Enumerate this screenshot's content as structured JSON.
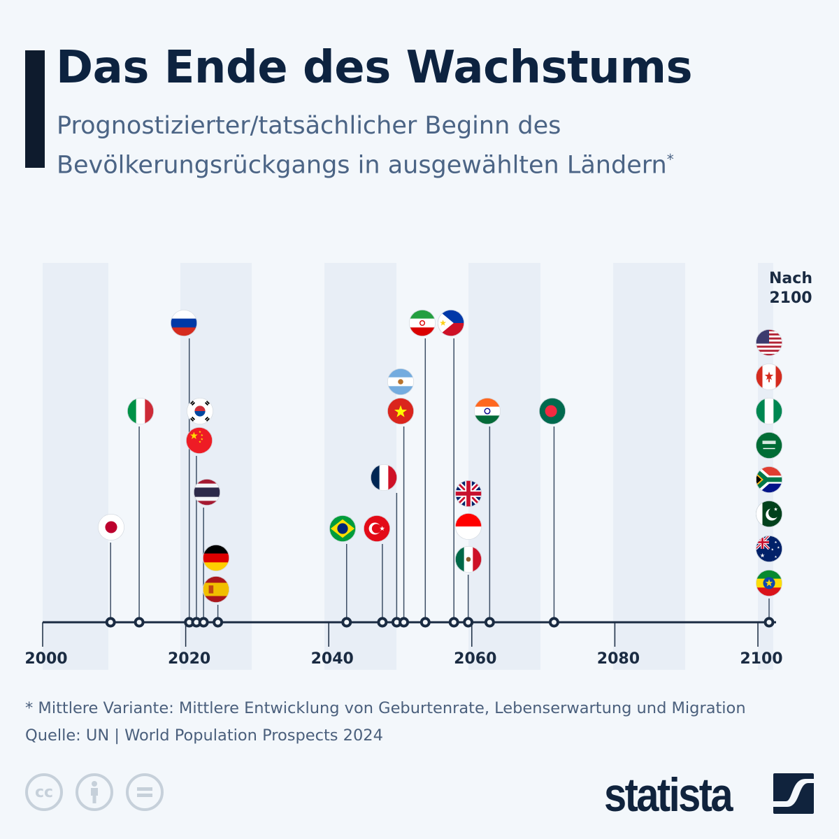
{
  "header": {
    "title": "Das Ende des Wachstums",
    "subtitle_line1": "Prognostizierter/tatsächlicher Beginn des",
    "subtitle_line2": "Bevölkerungsrückgangs in ausgewählten Ländern",
    "subtitle_marker": "*"
  },
  "chart_data": {
    "type": "timeline",
    "title": "Das Ende des Wachstums",
    "xlim": [
      2000,
      2100
    ],
    "x_ticks": [
      "2000",
      "2020",
      "2040",
      "2060",
      "2080",
      "2100"
    ],
    "after_label": "Nach 2100",
    "after_label_line1": "Nach",
    "after_label_line2": "2100",
    "colors": {
      "axis": "#1a2b42",
      "band": "#e8eef6",
      "background": "#f3f7fb",
      "title": "#0d2340"
    },
    "points": [
      {
        "year": 2009,
        "flags": [
          "flag-japan"
        ]
      },
      {
        "year": 2013,
        "flags": [
          "flag-italy"
        ]
      },
      {
        "year": 2020,
        "flags": [
          "flag-russia"
        ]
      },
      {
        "year": 2021,
        "flags": [
          "flag-south-korea",
          "flag-china"
        ]
      },
      {
        "year": 2022,
        "flags": [
          "flag-thailand"
        ]
      },
      {
        "year": 2024,
        "flags": [
          "flag-germany",
          "flag-spain"
        ]
      },
      {
        "year": 2042,
        "flags": [
          "flag-brazil"
        ]
      },
      {
        "year": 2047,
        "flags": [
          "flag-turkey"
        ]
      },
      {
        "year": 2049,
        "flags": [
          "flag-france"
        ]
      },
      {
        "year": 2050,
        "flags": [
          "flag-argentina",
          "flag-vietnam"
        ]
      },
      {
        "year": 2053,
        "flags": [
          "flag-iran"
        ]
      },
      {
        "year": 2057,
        "flags": [
          "flag-philippines"
        ]
      },
      {
        "year": 2059,
        "flags": [
          "flag-united-kingdom",
          "flag-indonesia",
          "flag-mexico"
        ]
      },
      {
        "year": 2062,
        "flags": [
          "flag-india"
        ]
      },
      {
        "year": 2071,
        "flags": [
          "flag-bangladesh"
        ]
      },
      {
        "year": "after 2100",
        "flags": [
          "flag-usa",
          "flag-canada",
          "flag-nigeria",
          "flag-saudi-arabia",
          "flag-south-africa",
          "flag-pakistan",
          "flag-australia",
          "flag-ethiopia"
        ]
      }
    ]
  },
  "footer": {
    "footnote": "* Mittlere Variante: Mittlere Entwicklung von Geburtenrate, Lebenserwartung und Migration",
    "source": "Quelle: UN | World Population Prospects 2024",
    "license_icons": [
      "cc-icon",
      "attribution-icon",
      "no-derivatives-icon"
    ],
    "cc_text": "cc",
    "brand": "statista"
  }
}
